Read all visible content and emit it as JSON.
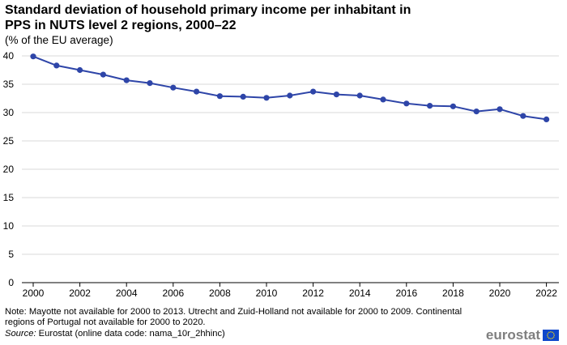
{
  "title_line1": "Standard deviation of household primary income per inhabitant in",
  "title_line2": "PPS in NUTS level 2 regions, 2000–22",
  "subtitle": "(% of the EU average)",
  "note": "Note: Mayotte not available for 2000 to 2013. Utrecht and Zuid-Holland not available for 2000 to 2009. Continental regions of Portugal not available for 2000 to 2020.",
  "source_label": "Source:",
  "source_text": " Eurostat (online data code: nama_10r_2hhinc)",
  "logo_text": "eurostat",
  "colors": {
    "line": "#2e45a8",
    "grid": "#d9d9d9",
    "axis": "#000000",
    "logo": "#7f7f7f",
    "flag": "#0e47cb",
    "stars": "#ffdd00"
  },
  "chart_data": {
    "type": "line",
    "title": "Standard deviation of household primary income per inhabitant in PPS in NUTS level 2 regions, 2000–22",
    "ylabel": "% of the EU average",
    "xlabel": "",
    "ylim": [
      0,
      40
    ],
    "yticks": [
      0,
      5,
      10,
      15,
      20,
      25,
      30,
      35,
      40
    ],
    "xticks": [
      2000,
      2002,
      2004,
      2006,
      2008,
      2010,
      2012,
      2014,
      2016,
      2018,
      2020,
      2022
    ],
    "grid": true,
    "x": [
      2000,
      2001,
      2002,
      2003,
      2004,
      2005,
      2006,
      2007,
      2008,
      2009,
      2010,
      2011,
      2012,
      2013,
      2014,
      2015,
      2016,
      2017,
      2018,
      2019,
      2020,
      2021,
      2022
    ],
    "series": [
      {
        "name": "Standard deviation",
        "values": [
          39.9,
          38.3,
          37.5,
          36.7,
          35.7,
          35.2,
          34.4,
          33.7,
          32.9,
          32.8,
          32.6,
          33.0,
          33.7,
          33.2,
          33.0,
          32.3,
          31.6,
          31.2,
          31.1,
          30.2,
          30.6,
          29.4,
          28.8
        ]
      }
    ]
  }
}
